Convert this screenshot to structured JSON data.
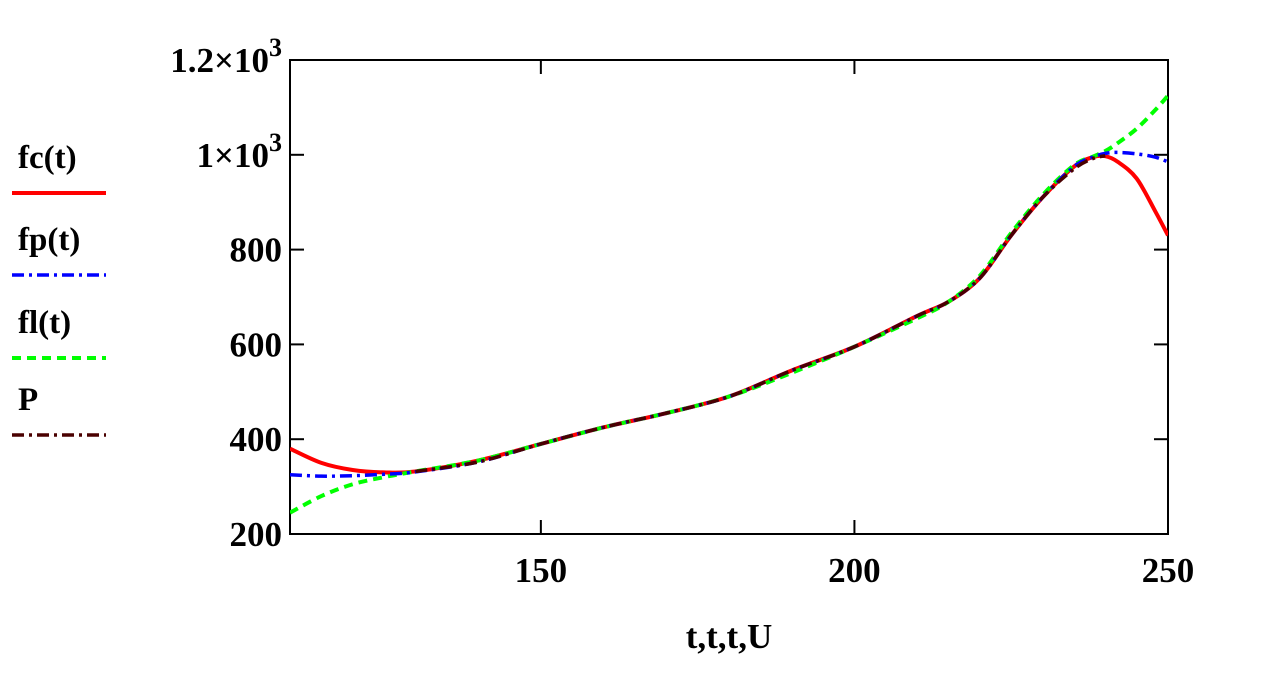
{
  "chart_data": {
    "type": "line",
    "xlabel": "t,t,t,U",
    "ylabel": "",
    "xlim": [
      110,
      250
    ],
    "ylim": [
      200,
      1200
    ],
    "x_ticks": [
      {
        "value": 150,
        "label": "150"
      },
      {
        "value": 200,
        "label": "200"
      },
      {
        "value": 250,
        "label": "250"
      }
    ],
    "y_ticks": [
      {
        "value": 200,
        "label": "200"
      },
      {
        "value": 400,
        "label": "400"
      },
      {
        "value": 600,
        "label": "600"
      },
      {
        "value": 800,
        "label": "800"
      },
      {
        "value": 1000,
        "label": "1×10",
        "exponent": "3"
      },
      {
        "value": 1200,
        "label": "1.2×10",
        "exponent": "3"
      }
    ],
    "grid": false,
    "legend_position": "left",
    "series": [
      {
        "name": "fc(t)",
        "color": "#ff0000",
        "style": "solid",
        "x": [
          110,
          115,
          120,
          125,
          130,
          140,
          150,
          160,
          170,
          180,
          190,
          200,
          210,
          215,
          220,
          225,
          230,
          235,
          238,
          240,
          242,
          245,
          248,
          250
        ],
        "y": [
          380,
          350,
          335,
          330,
          332,
          355,
          390,
          425,
          455,
          490,
          545,
          595,
          660,
          690,
          740,
          830,
          910,
          975,
          995,
          997,
          985,
          950,
          880,
          830
        ]
      },
      {
        "name": "fp(t)",
        "color": "#0000ff",
        "style": "dashdot",
        "x": [
          110,
          115,
          120,
          125,
          130,
          140,
          150,
          160,
          170,
          180,
          190,
          200,
          210,
          215,
          220,
          225,
          230,
          235,
          238,
          240,
          242,
          245,
          248,
          250
        ],
        "y": [
          325,
          322,
          323,
          326,
          331,
          352,
          390,
          425,
          455,
          490,
          545,
          595,
          660,
          690,
          740,
          830,
          910,
          975,
          995,
          1003,
          1005,
          1002,
          995,
          985
        ]
      },
      {
        "name": "fl(t)",
        "color": "#00ff00",
        "style": "dashed",
        "x": [
          110,
          115,
          120,
          125,
          130,
          140,
          150,
          160,
          170,
          180,
          190,
          200,
          210,
          215,
          220,
          225,
          230,
          235,
          238,
          240,
          242,
          245,
          248,
          250
        ],
        "y": [
          245,
          280,
          305,
          320,
          332,
          355,
          390,
          425,
          455,
          490,
          540,
          595,
          655,
          690,
          745,
          835,
          915,
          978,
          996,
          1008,
          1025,
          1055,
          1095,
          1125
        ]
      },
      {
        "name": "P",
        "color": "#4a0000",
        "style": "dashdot",
        "x": [
          130,
          140,
          150,
          160,
          170,
          180,
          190,
          200,
          210,
          215,
          220,
          225,
          230,
          235,
          238,
          240
        ],
        "y": [
          332,
          352,
          390,
          425,
          455,
          490,
          545,
          595,
          660,
          690,
          740,
          830,
          910,
          970,
          992,
          998
        ]
      }
    ]
  }
}
